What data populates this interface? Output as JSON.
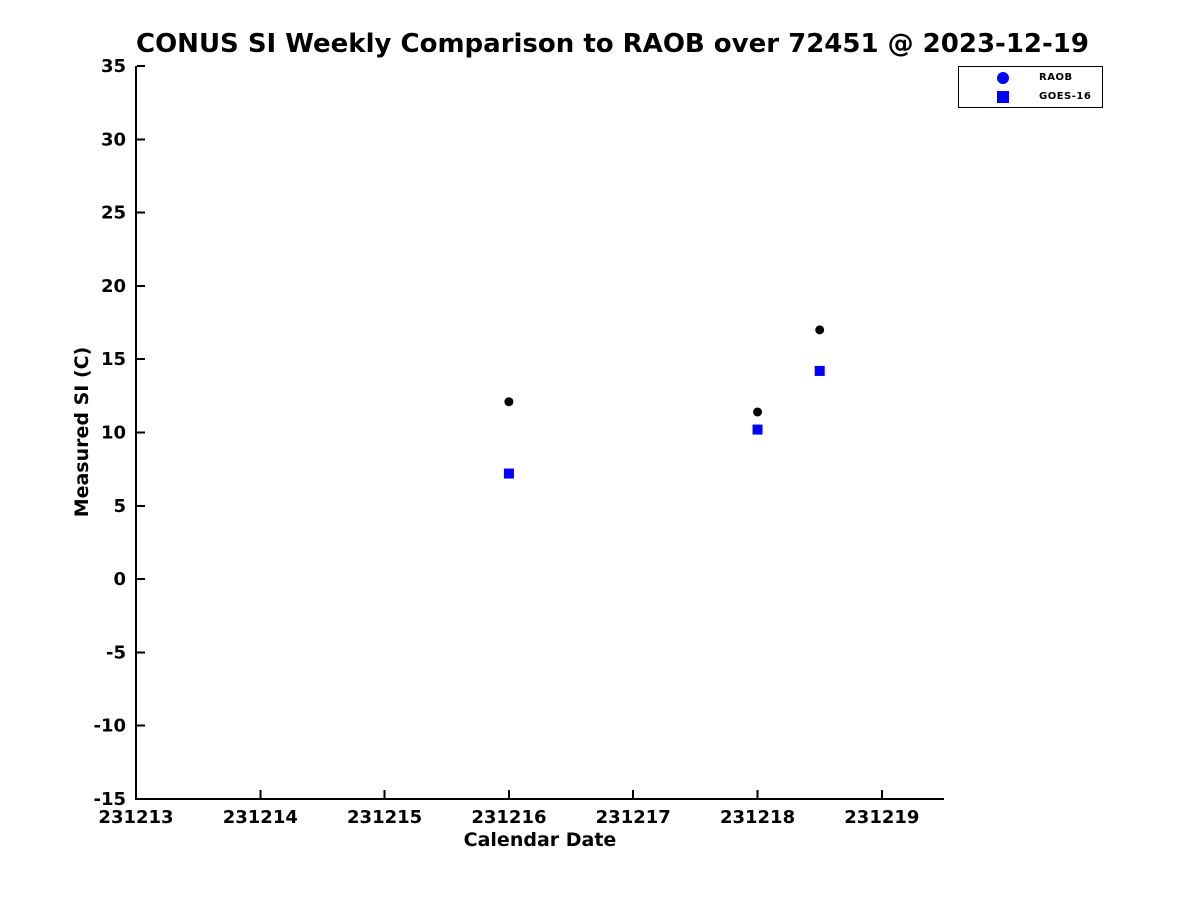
{
  "chart_data": {
    "type": "scatter",
    "title": "CONUS SI Weekly Comparison to RAOB over 72451 @ 2023-12-19",
    "xlabel": "Calendar Date",
    "ylabel": "Measured SI (C)",
    "xlim": [
      231213,
      231219.5
    ],
    "ylim": [
      -15,
      35
    ],
    "x_ticks": [
      231213,
      231214,
      231215,
      231216,
      231217,
      231218,
      231219
    ],
    "x_tick_labels": [
      "231213",
      "231214",
      "231215",
      "231216",
      "231217",
      "231218",
      "231219"
    ],
    "y_ticks": [
      35,
      30,
      25,
      20,
      15,
      10,
      5,
      0,
      -5,
      -10,
      -15
    ],
    "y_tick_labels": [
      "35",
      "30",
      "25",
      "20",
      "15",
      "10",
      "5",
      "0",
      "-5",
      "-10",
      "-15"
    ],
    "grid": false,
    "axis_color": "#000000",
    "background_color": "#ffffff",
    "legend": {
      "position": "outside-top-right",
      "border_color": "#000000",
      "marker_color": "#0000ff"
    },
    "series": [
      {
        "name": "RAOB",
        "marker": "circle",
        "plot_color": "#000000",
        "legend_color": "#0000ff",
        "points": [
          {
            "x": 231216.0,
            "y": 12.1
          },
          {
            "x": 231218.0,
            "y": 11.4
          },
          {
            "x": 231218.5,
            "y": 17.0
          }
        ]
      },
      {
        "name": "GOES-16",
        "marker": "square",
        "plot_color": "#0000ff",
        "legend_color": "#0000ff",
        "points": [
          {
            "x": 231216.0,
            "y": 7.2
          },
          {
            "x": 231218.0,
            "y": 10.2
          },
          {
            "x": 231218.5,
            "y": 14.2
          }
        ]
      }
    ]
  }
}
